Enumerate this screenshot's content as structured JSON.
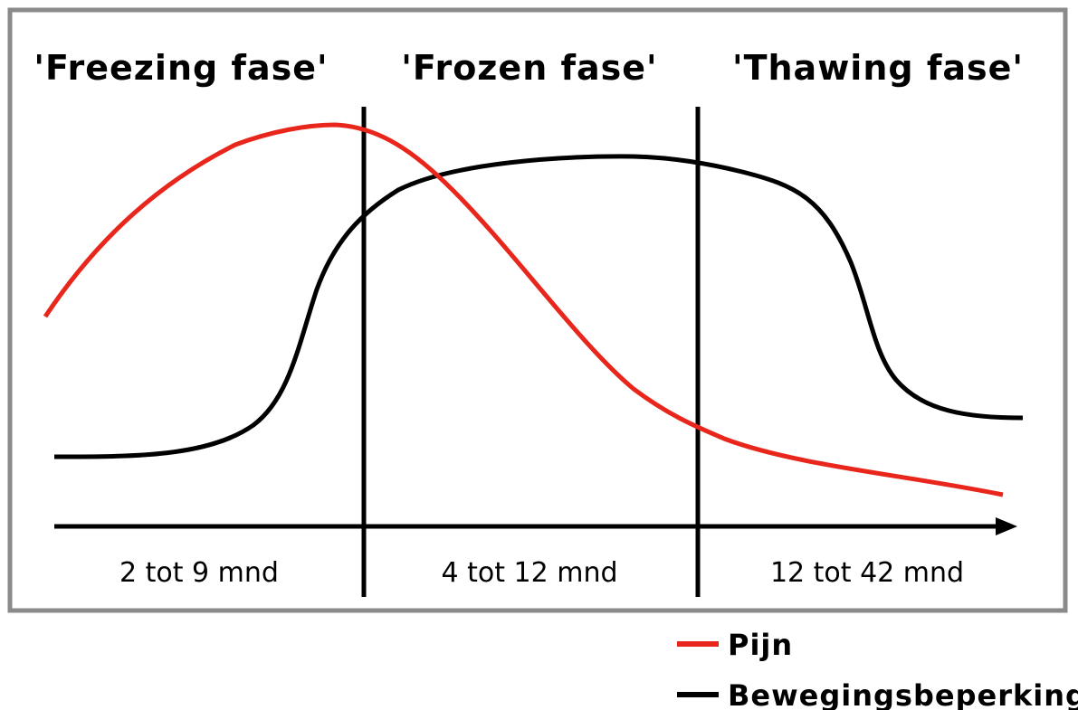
{
  "phases": [
    {
      "name": "'Freezing fase'",
      "duration": "2 tot 9 mnd"
    },
    {
      "name": "'Frozen fase'",
      "duration": "4 tot 12 mnd"
    },
    {
      "name": "'Thawing fase'",
      "duration": "12 tot 42 mnd"
    }
  ],
  "legend": [
    {
      "label": "Pijn",
      "color": "#e8261c"
    },
    {
      "label": "Bewegingsbeperking",
      "color": "#000000"
    }
  ]
}
